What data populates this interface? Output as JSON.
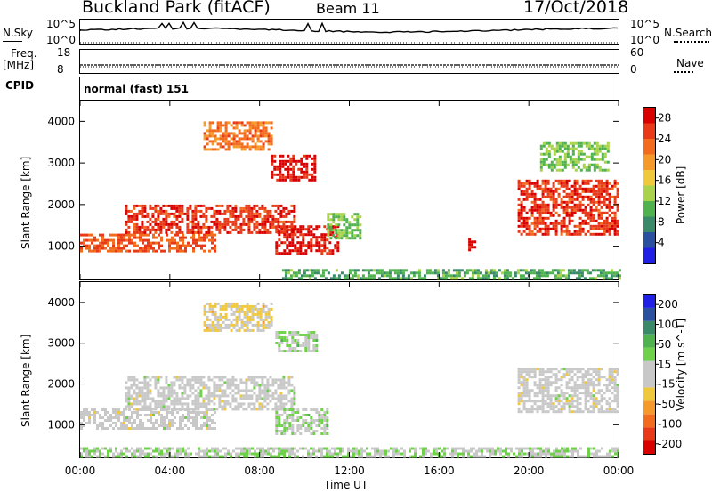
{
  "header": {
    "site": "Buckland Park (fitACF)",
    "beam": "Beam 11",
    "date": "17/Oct/2018"
  },
  "strip": {
    "nsky_label": "N.Sky",
    "nsky_top": "10^5",
    "nsky_bottom": "10^0",
    "nsearch_label": "N.Search",
    "nsearch_top": "10^5",
    "nsearch_bottom": "10^0",
    "freq_label1": "Freq.",
    "freq_label2": "[MHz]",
    "freq_top": "18",
    "freq_bottom": "8",
    "nave_label": "Nave",
    "nave_top": "60",
    "nave_bottom": "0",
    "cpid_label": "CPID",
    "cpid_text": "normal (fast) 151"
  },
  "x_axis": {
    "label": "Time UT",
    "ticks": [
      "00:00",
      "04:00",
      "08:00",
      "12:00",
      "16:00",
      "20:00",
      "00:00"
    ]
  },
  "colors": {
    "power": [
      "#1f1fe6",
      "#2a50a0",
      "#3a8a6a",
      "#4fb24f",
      "#a8d34a",
      "#f0c83c",
      "#f59a2a",
      "#f36c1e",
      "#e83a18",
      "#d90000"
    ],
    "velocity": [
      "#1f1fe6",
      "#2a50a0",
      "#3a8a6a",
      "#4fb24f",
      "#6fd04a",
      "#c8c8c8",
      "#c8c8c8",
      "#f0c83c",
      "#f59a2a",
      "#f36c1e",
      "#e83a18",
      "#d90000"
    ]
  },
  "chart_data": [
    {
      "type": "heatmap",
      "ylabel": "Slant Range [km]",
      "xlabel": "",
      "yticks": [
        "1000",
        "2000",
        "3000",
        "4000"
      ],
      "ylim": [
        200,
        4500
      ],
      "xlim_hours": [
        0,
        24
      ],
      "colorbar": {
        "label": "Power [dB]",
        "ticks": [
          "4",
          "8",
          "12",
          "16",
          "20",
          "24",
          "28"
        ],
        "range": [
          0,
          30
        ]
      },
      "regions": [
        {
          "t": [
            0.0,
            6.0
          ],
          "range_km": [
            900,
            1300
          ],
          "value": 24
        },
        {
          "t": [
            2.0,
            9.5
          ],
          "range_km": [
            1300,
            2000
          ],
          "value": 26
        },
        {
          "t": [
            5.5,
            8.5
          ],
          "range_km": [
            3300,
            4000
          ],
          "value": 22
        },
        {
          "t": [
            8.5,
            10.5
          ],
          "range_km": [
            2600,
            3200
          ],
          "value": 28
        },
        {
          "t": [
            8.7,
            11.5
          ],
          "range_km": [
            800,
            1500
          ],
          "value": 28
        },
        {
          "t": [
            11.0,
            12.5
          ],
          "range_km": [
            1200,
            1800
          ],
          "value": 12
        },
        {
          "t": [
            17.3,
            17.6
          ],
          "range_km": [
            900,
            1200
          ],
          "value": 28
        },
        {
          "t": [
            19.5,
            24.0
          ],
          "range_km": [
            1300,
            2600
          ],
          "value": 26
        },
        {
          "t": [
            20.5,
            23.5
          ],
          "range_km": [
            2800,
            3500
          ],
          "value": 12
        },
        {
          "t": [
            9.0,
            24.0
          ],
          "range_km": [
            200,
            450
          ],
          "value": 10
        }
      ]
    },
    {
      "type": "heatmap",
      "ylabel": "Slant Range [km]",
      "xlabel": "Time UT",
      "yticks": [
        "1000",
        "2000",
        "3000",
        "4000"
      ],
      "ylim": [
        200,
        4500
      ],
      "xlim_hours": [
        0,
        24
      ],
      "colorbar": {
        "label": "Velocity [m s^-1]",
        "ticks": [
          "200",
          "100",
          "50",
          "15",
          "-15",
          "-50",
          "-100",
          "-200"
        ],
        "range": [
          -250,
          250
        ]
      },
      "regions": [
        {
          "t": [
            0.0,
            6.0
          ],
          "range_km": [
            900,
            1400
          ],
          "value": 0
        },
        {
          "t": [
            2.0,
            9.5
          ],
          "range_km": [
            1400,
            2200
          ],
          "value": 0
        },
        {
          "t": [
            5.5,
            8.5
          ],
          "range_km": [
            3300,
            4000
          ],
          "value": -40
        },
        {
          "t": [
            8.7,
            10.5
          ],
          "range_km": [
            2800,
            3300
          ],
          "value": 40
        },
        {
          "t": [
            8.7,
            11.0
          ],
          "range_km": [
            800,
            1400
          ],
          "value": 40
        },
        {
          "t": [
            19.5,
            24.0
          ],
          "range_km": [
            1300,
            2400
          ],
          "value": 0
        },
        {
          "t": [
            0.0,
            24.0
          ],
          "range_km": [
            200,
            450
          ],
          "value": 30
        }
      ]
    }
  ]
}
